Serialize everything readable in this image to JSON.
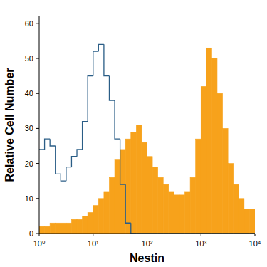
{
  "chart_data": {
    "type": "histogram",
    "x_label": "Nestin",
    "y_label": "Relative Cell Number",
    "log": "x",
    "bins": [
      1,
      1.259,
      1.585,
      1.995,
      2.512,
      3.162,
      3.981,
      5.012,
      6.31,
      7.943,
      10,
      12.59,
      15.85,
      19.95,
      25.12,
      31.62,
      39.81,
      50.12,
      63.1,
      79.43,
      100,
      125.9,
      158.5,
      199.5,
      251.2,
      316.2,
      398.1,
      501.2,
      631,
      794.3,
      1000,
      1259,
      1585,
      1995,
      2512,
      3162,
      3981,
      5012,
      6310,
      7943,
      10000
    ],
    "series": [
      {
        "type": "bar",
        "color": "#f7a21b",
        "values": [
          2,
          2,
          3,
          3,
          3,
          3,
          4,
          4,
          5,
          6,
          8,
          10,
          12,
          16,
          21,
          24,
          27,
          29,
          31,
          26,
          22,
          19,
          16,
          14,
          12,
          11,
          11,
          12,
          16,
          27,
          42,
          53,
          50,
          40,
          30,
          20,
          14,
          10,
          7,
          7
        ]
      },
      {
        "type": "step",
        "color": "#2a5d86",
        "values": [
          24,
          27,
          25,
          17,
          15,
          19,
          22,
          24,
          32,
          45,
          52,
          54,
          45,
          38,
          27,
          14,
          3,
          0,
          0,
          0,
          0,
          0,
          0,
          0,
          0,
          0,
          0,
          0,
          0,
          0,
          0,
          0,
          0,
          0,
          0,
          0,
          0,
          0,
          0,
          0
        ]
      }
    ],
    "xlim": [
      1,
      10000
    ],
    "xticks": [
      {
        "value": 1,
        "label": "10⁰"
      },
      {
        "value": 10,
        "label": "10¹"
      },
      {
        "value": 100,
        "label": "10²"
      },
      {
        "value": 1000,
        "label": "10³"
      },
      {
        "value": 10000,
        "label": "10⁴"
      }
    ],
    "ylim": [
      0,
      62
    ],
    "yticks": [
      0,
      10,
      20,
      30,
      40,
      50,
      60
    ]
  }
}
